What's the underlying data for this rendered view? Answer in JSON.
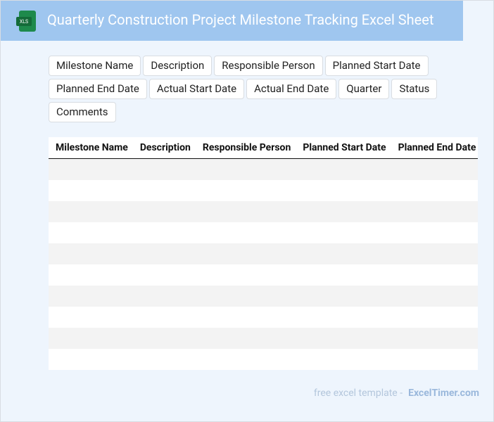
{
  "header": {
    "icon": "XLS",
    "title": "Quarterly Construction Project Milestone Tracking Excel Sheet"
  },
  "tags": [
    "Milestone Name",
    "Description",
    "Responsible Person",
    "Planned Start Date",
    "Planned End Date",
    "Actual Start Date",
    "Actual End Date",
    "Quarter",
    "Status",
    "Comments"
  ],
  "table": {
    "columns": [
      "Milestone Name",
      "Description",
      "Responsible Person",
      "Planned Start Date",
      "Planned End Date"
    ]
  },
  "footer": {
    "text": "free excel template -",
    "brand": "ExcelTimer.com"
  }
}
